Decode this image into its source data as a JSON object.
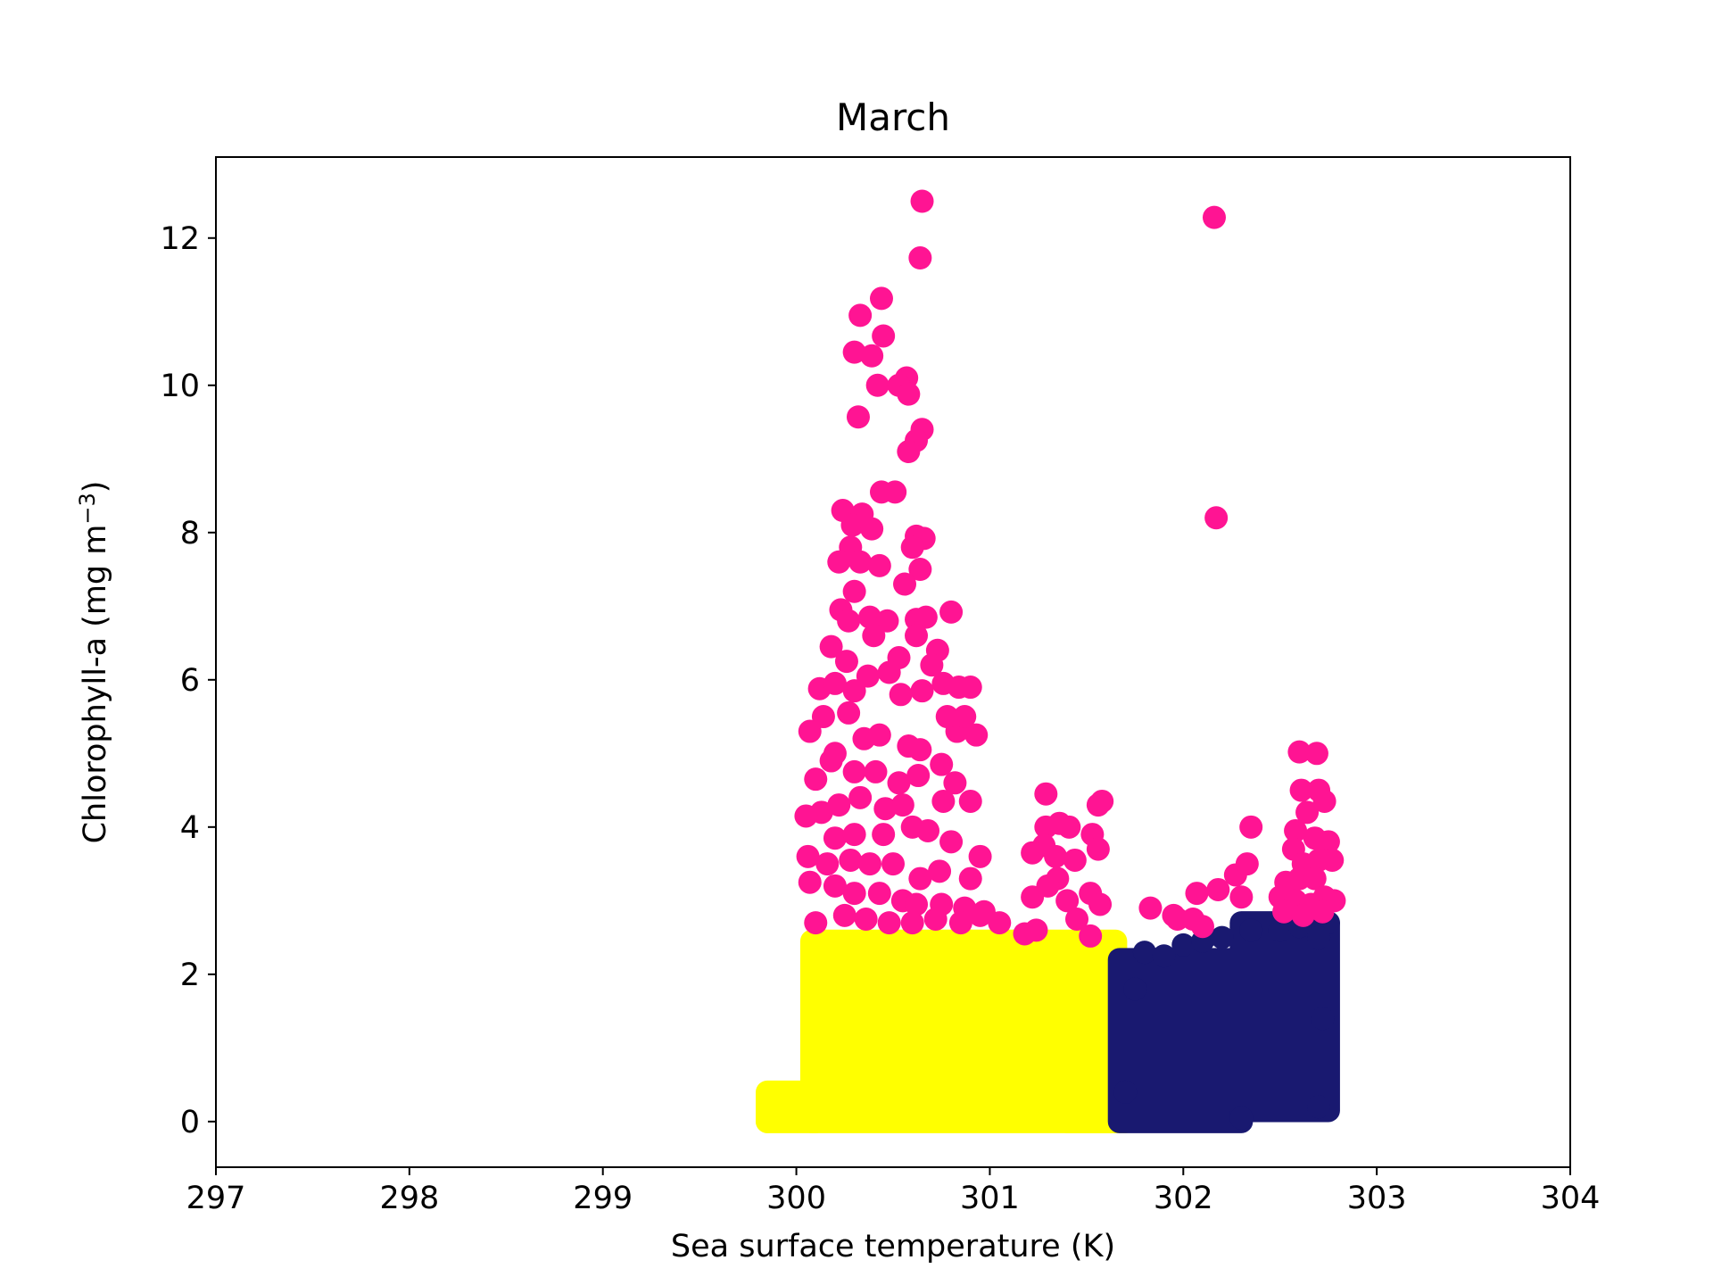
{
  "chart_data": {
    "type": "scatter",
    "title": "March",
    "xlabel": "Sea surface temperature (K)",
    "ylabel": "Chlorophyll-a (mg m",
    "ylabel_sup": "−3",
    "ylabel_end": ")",
    "xlim": [
      297,
      304
    ],
    "ylim": [
      -0.62,
      13.1
    ],
    "xticks": [
      297,
      298,
      299,
      300,
      301,
      302,
      303,
      304
    ],
    "yticks": [
      0,
      2,
      4,
      6,
      8,
      10,
      12
    ],
    "xtick_labels": [
      "297",
      "298",
      "299",
      "300",
      "301",
      "302",
      "303",
      "304"
    ],
    "ytick_labels": [
      "0",
      "2",
      "4",
      "6",
      "8",
      "10",
      "12"
    ],
    "grid": false,
    "series": [
      {
        "color": "#ffff00",
        "regions": [
          {
            "x": [
              299.85,
              300.1
            ],
            "y": [
              0.0,
              0.4
            ]
          },
          {
            "x": [
              300.08,
              301.65
            ],
            "y": [
              0.0,
              2.45
            ]
          },
          {
            "x": [
              301.4,
              301.7
            ],
            "y": [
              0.0,
              1.5
            ]
          }
        ],
        "points": [
          [
            299.85,
            0.0
          ],
          [
            299.9,
            0.35
          ],
          [
            300.0,
            0.38
          ],
          [
            300.05,
            0.3
          ],
          [
            300.1,
            2.4
          ],
          [
            300.2,
            2.4
          ],
          [
            300.3,
            2.3
          ],
          [
            300.5,
            2.45
          ],
          [
            300.7,
            2.4
          ],
          [
            300.9,
            2.45
          ],
          [
            301.0,
            2.3
          ],
          [
            301.1,
            2.1
          ],
          [
            301.3,
            2.4
          ],
          [
            301.4,
            2.2
          ],
          [
            301.55,
            1.6
          ],
          [
            301.65,
            1.4
          ],
          [
            301.6,
            0.1
          ]
        ]
      },
      {
        "color": "#191970",
        "regions": [
          {
            "x": [
              301.67,
              302.3
            ],
            "y": [
              0.0,
              2.2
            ]
          },
          {
            "x": [
              302.3,
              302.75
            ],
            "y": [
              0.15,
              2.7
            ]
          }
        ],
        "points": [
          [
            301.8,
            2.3
          ],
          [
            301.9,
            2.25
          ],
          [
            302.0,
            2.4
          ],
          [
            302.1,
            2.45
          ],
          [
            302.2,
            2.5
          ],
          [
            302.35,
            2.6
          ],
          [
            302.5,
            2.6
          ],
          [
            302.6,
            2.65
          ],
          [
            302.75,
            2.7
          ],
          [
            302.7,
            2.5
          ],
          [
            302.72,
            1.4
          ],
          [
            302.7,
            0.2
          ],
          [
            301.75,
            1.8
          ],
          [
            301.7,
            0.4
          ],
          [
            302.3,
            0.05
          ]
        ]
      },
      {
        "color": "#ff1493",
        "points": [
          [
            300.65,
            12.5
          ],
          [
            302.16,
            12.28
          ],
          [
            300.64,
            11.73
          ],
          [
            300.44,
            11.18
          ],
          [
            300.33,
            10.95
          ],
          [
            300.45,
            10.67
          ],
          [
            300.3,
            10.45
          ],
          [
            300.39,
            10.4
          ],
          [
            300.57,
            10.1
          ],
          [
            300.42,
            10.0
          ],
          [
            300.53,
            10.0
          ],
          [
            300.58,
            9.88
          ],
          [
            300.32,
            9.57
          ],
          [
            300.65,
            9.4
          ],
          [
            300.62,
            9.25
          ],
          [
            300.58,
            9.1
          ],
          [
            302.17,
            8.2
          ],
          [
            300.44,
            8.55
          ],
          [
            300.51,
            8.55
          ],
          [
            300.24,
            8.3
          ],
          [
            300.34,
            8.25
          ],
          [
            300.29,
            8.1
          ],
          [
            300.39,
            8.05
          ],
          [
            300.62,
            7.95
          ],
          [
            300.66,
            7.92
          ],
          [
            300.6,
            7.8
          ],
          [
            300.28,
            7.8
          ],
          [
            300.33,
            7.6
          ],
          [
            300.22,
            7.6
          ],
          [
            300.43,
            7.55
          ],
          [
            300.64,
            7.5
          ],
          [
            300.56,
            7.3
          ],
          [
            300.3,
            7.2
          ],
          [
            300.23,
            6.95
          ],
          [
            300.38,
            6.85
          ],
          [
            300.27,
            6.8
          ],
          [
            300.47,
            6.8
          ],
          [
            300.62,
            6.82
          ],
          [
            300.67,
            6.85
          ],
          [
            300.8,
            6.92
          ],
          [
            300.73,
            6.4
          ],
          [
            300.62,
            6.6
          ],
          [
            300.53,
            6.3
          ],
          [
            300.4,
            6.6
          ],
          [
            300.18,
            6.45
          ],
          [
            300.26,
            6.25
          ],
          [
            300.37,
            6.05
          ],
          [
            300.48,
            6.1
          ],
          [
            300.7,
            6.2
          ],
          [
            300.76,
            5.95
          ],
          [
            300.84,
            5.9
          ],
          [
            300.9,
            5.9
          ],
          [
            300.65,
            5.85
          ],
          [
            300.54,
            5.8
          ],
          [
            300.3,
            5.85
          ],
          [
            300.12,
            5.88
          ],
          [
            300.2,
            5.95
          ],
          [
            300.27,
            5.55
          ],
          [
            300.14,
            5.5
          ],
          [
            300.07,
            5.3
          ],
          [
            300.35,
            5.2
          ],
          [
            300.43,
            5.25
          ],
          [
            300.58,
            5.1
          ],
          [
            300.64,
            5.05
          ],
          [
            300.83,
            5.3
          ],
          [
            300.93,
            5.25
          ],
          [
            300.87,
            5.5
          ],
          [
            300.78,
            5.5
          ],
          [
            300.2,
            5.0
          ],
          [
            300.3,
            4.75
          ],
          [
            300.18,
            4.9
          ],
          [
            300.1,
            4.65
          ],
          [
            300.41,
            4.75
          ],
          [
            300.53,
            4.6
          ],
          [
            300.63,
            4.7
          ],
          [
            300.75,
            4.85
          ],
          [
            300.82,
            4.6
          ],
          [
            300.9,
            4.35
          ],
          [
            300.76,
            4.35
          ],
          [
            300.55,
            4.3
          ],
          [
            300.46,
            4.25
          ],
          [
            300.33,
            4.4
          ],
          [
            300.22,
            4.3
          ],
          [
            300.13,
            4.2
          ],
          [
            300.05,
            4.15
          ],
          [
            300.2,
            3.85
          ],
          [
            300.3,
            3.9
          ],
          [
            300.45,
            3.9
          ],
          [
            300.6,
            4.0
          ],
          [
            300.68,
            3.95
          ],
          [
            300.8,
            3.8
          ],
          [
            300.95,
            3.6
          ],
          [
            300.06,
            3.6
          ],
          [
            300.16,
            3.5
          ],
          [
            300.28,
            3.55
          ],
          [
            300.38,
            3.5
          ],
          [
            300.5,
            3.5
          ],
          [
            300.64,
            3.3
          ],
          [
            300.74,
            3.4
          ],
          [
            300.9,
            3.3
          ],
          [
            300.07,
            3.25
          ],
          [
            300.2,
            3.2
          ],
          [
            300.3,
            3.1
          ],
          [
            300.43,
            3.1
          ],
          [
            300.55,
            3.0
          ],
          [
            300.62,
            2.95
          ],
          [
            300.75,
            2.95
          ],
          [
            300.87,
            2.9
          ],
          [
            300.95,
            2.8
          ],
          [
            301.05,
            2.7
          ],
          [
            300.1,
            2.7
          ],
          [
            300.25,
            2.8
          ],
          [
            300.36,
            2.75
          ],
          [
            300.48,
            2.7
          ],
          [
            300.6,
            2.7
          ],
          [
            300.72,
            2.75
          ],
          [
            300.85,
            2.7
          ],
          [
            300.97,
            2.85
          ],
          [
            301.29,
            4.45
          ],
          [
            301.29,
            4.0
          ],
          [
            301.36,
            4.05
          ],
          [
            301.41,
            4.0
          ],
          [
            301.28,
            3.75
          ],
          [
            301.22,
            3.65
          ],
          [
            301.34,
            3.6
          ],
          [
            301.44,
            3.55
          ],
          [
            301.35,
            3.3
          ],
          [
            301.3,
            3.2
          ],
          [
            301.4,
            3.0
          ],
          [
            301.52,
            3.1
          ],
          [
            301.57,
            2.95
          ],
          [
            301.22,
            3.05
          ],
          [
            301.18,
            2.55
          ],
          [
            301.24,
            2.6
          ],
          [
            301.45,
            2.75
          ],
          [
            301.52,
            2.52
          ],
          [
            301.53,
            3.9
          ],
          [
            301.56,
            3.7
          ],
          [
            301.56,
            4.3
          ],
          [
            301.58,
            4.35
          ],
          [
            301.83,
            2.9
          ],
          [
            301.95,
            2.8
          ],
          [
            301.97,
            2.75
          ],
          [
            302.05,
            2.75
          ],
          [
            302.07,
            3.1
          ],
          [
            302.18,
            3.15
          ],
          [
            302.27,
            3.35
          ],
          [
            302.33,
            3.5
          ],
          [
            302.35,
            4.0
          ],
          [
            302.3,
            3.05
          ],
          [
            302.1,
            2.65
          ],
          [
            302.6,
            5.02
          ],
          [
            302.69,
            5.0
          ],
          [
            302.61,
            4.5
          ],
          [
            302.7,
            4.5
          ],
          [
            302.73,
            4.35
          ],
          [
            302.64,
            4.2
          ],
          [
            302.58,
            3.95
          ],
          [
            302.68,
            3.85
          ],
          [
            302.75,
            3.8
          ],
          [
            302.57,
            3.7
          ],
          [
            302.62,
            3.5
          ],
          [
            302.7,
            3.55
          ],
          [
            302.77,
            3.55
          ],
          [
            302.53,
            3.25
          ],
          [
            302.6,
            3.3
          ],
          [
            302.68,
            3.3
          ],
          [
            302.5,
            3.05
          ],
          [
            302.58,
            3.0
          ],
          [
            302.66,
            2.95
          ],
          [
            302.73,
            3.05
          ],
          [
            302.78,
            3.0
          ],
          [
            302.52,
            2.85
          ],
          [
            302.62,
            2.8
          ],
          [
            302.72,
            2.85
          ]
        ]
      }
    ]
  }
}
